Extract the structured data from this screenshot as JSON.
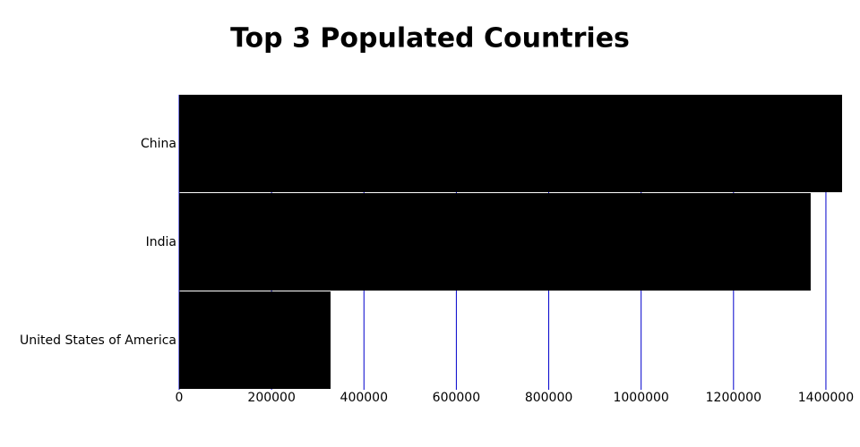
{
  "chart_data": {
    "type": "hbar",
    "title": "Top 3 Populated Countries",
    "categories": [
      "China",
      "India",
      "United States of America"
    ],
    "values": [
      1435000,
      1367000,
      327700
    ],
    "color": "#000000",
    "grid_color": "#0000cc",
    "xlim": [
      0,
      1435000
    ],
    "xticks": [
      0,
      200000,
      400000,
      600000,
      800000,
      1000000,
      1200000,
      1400000
    ],
    "grid": true
  }
}
